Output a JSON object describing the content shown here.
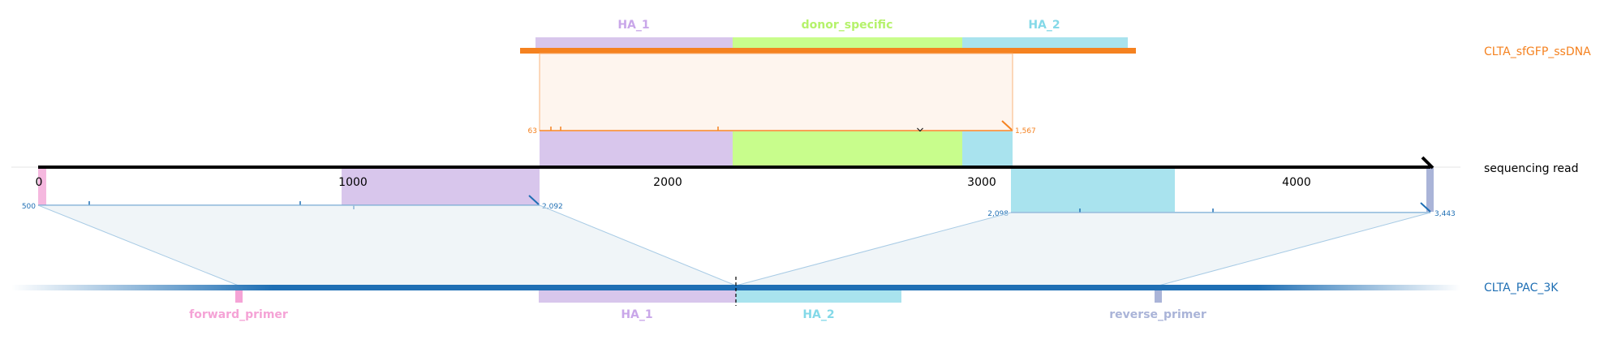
{
  "diagram": {
    "axis_ticks": [
      "0",
      "1000",
      "2000",
      "3000",
      "4000"
    ],
    "donor": {
      "label": "CLTA_sfGFP_ssDNA",
      "features": [
        {
          "label": "HA_1",
          "color": "#d8c6ec"
        },
        {
          "label": "donor_specific",
          "color": "#c8fd8c"
        },
        {
          "label": "HA_2",
          "color": "#a9e3ee"
        }
      ],
      "color": "#f58220",
      "alignment": {
        "start": "63",
        "end": "1,567"
      }
    },
    "read": {
      "label": "sequencing read",
      "alignment_left": {
        "start": "500",
        "end": "2,092"
      },
      "alignment_right": {
        "start": "2,098",
        "end": "3,443"
      }
    },
    "reference": {
      "label": "CLTA_PAC_3K",
      "color": "#1f6fb4",
      "features": [
        {
          "label": "forward_primer",
          "color": "#f5a3d6"
        },
        {
          "label": "HA_1",
          "color": "#d8c6ec"
        },
        {
          "label": "HA_2",
          "color": "#a9e3ee"
        },
        {
          "label": "reverse_primer",
          "color": "#aab4d8"
        }
      ]
    }
  }
}
